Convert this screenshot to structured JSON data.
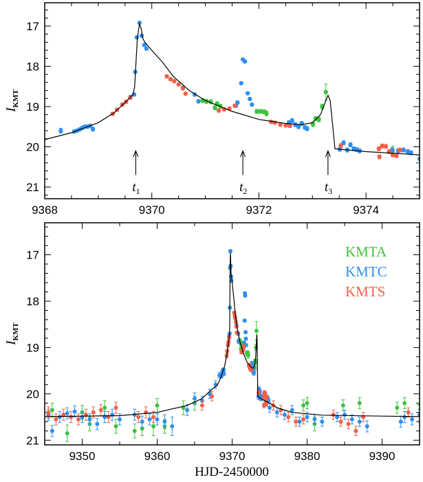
{
  "chart_data": [
    {
      "type": "scatter",
      "panel": "top",
      "xlim": [
        9368,
        9375
      ],
      "ylim": [
        21.29,
        16.42
      ],
      "y_inverted": true,
      "x_ticks": [
        "9368",
        "9370",
        "9372",
        "9374"
      ],
      "y_ticks": [
        "17",
        "18",
        "19",
        "20",
        "21"
      ],
      "ylabel": {
        "main": "I",
        "sub": "KMT"
      },
      "xlabel": "",
      "annotations": [
        {
          "label": "t",
          "sub": "1",
          "x": 9369.7
        },
        {
          "label": "t",
          "sub": "2",
          "x": 9371.7
        },
        {
          "label": "t",
          "sub": "3",
          "x": 9373.29
        }
      ]
    },
    {
      "type": "scatter",
      "panel": "bottom",
      "xlim": [
        9345,
        9395
      ],
      "ylim": [
        21.1,
        16.31
      ],
      "y_inverted": true,
      "x_ticks": [
        "9350",
        "9360",
        "9370",
        "9380",
        "9390"
      ],
      "y_ticks": [
        "17",
        "18",
        "19",
        "20",
        "21"
      ],
      "ylabel": {
        "main": "I",
        "sub": "KMT"
      },
      "xlabel": "HJD-2450000",
      "legend_placement": "top-right"
    }
  ],
  "series": [
    {
      "name": "KMTA",
      "color": "#3cc43c",
      "points": [
        [
          9370.95,
          18.85,
          0.05
        ],
        [
          9371.02,
          18.87,
          0.05
        ],
        [
          9371.1,
          18.88,
          0.05
        ],
        [
          9371.18,
          19.03,
          0.05
        ],
        [
          9371.22,
          18.93,
          0.05
        ],
        [
          9371.28,
          18.99,
          0.05
        ],
        [
          9371.96,
          19.12,
          0.05
        ],
        [
          9372.03,
          19.12,
          0.05
        ],
        [
          9372.1,
          19.13,
          0.05
        ],
        [
          9372.14,
          19.17,
          0.06
        ],
        [
          9373.01,
          19.44,
          0.06
        ],
        [
          9373.06,
          19.3,
          0.05
        ],
        [
          9373.12,
          19.32,
          0.06
        ],
        [
          9373.18,
          19.0,
          0.06
        ],
        [
          9373.25,
          18.64,
          0.2
        ],
        [
          9346,
          20.35,
          0.15
        ],
        [
          9348,
          20.85,
          0.18
        ],
        [
          9350,
          20.4,
          0.15
        ],
        [
          9351,
          20.65,
          0.15
        ],
        [
          9353,
          20.3,
          0.15
        ],
        [
          9354.5,
          20.7,
          0.15
        ],
        [
          9357,
          20.8,
          0.15
        ],
        [
          9358,
          20.75,
          0.15
        ],
        [
          9359.5,
          20.7,
          0.2
        ],
        [
          9360,
          20.25,
          0.15
        ],
        [
          9361,
          20.7,
          0.15
        ],
        [
          9363.5,
          20.3,
          0.15
        ],
        [
          9365,
          20.2,
          0.15
        ],
        [
          9374.5,
          20.1,
          0.12
        ],
        [
          9379.5,
          20.25,
          0.12
        ],
        [
          9380,
          20.2,
          0.12
        ],
        [
          9381,
          20.65,
          0.15
        ],
        [
          9384.8,
          20.25,
          0.12
        ],
        [
          9387,
          20.2,
          0.12
        ],
        [
          9392,
          20.3,
          0.12
        ],
        [
          9393,
          20.2,
          0.12
        ],
        [
          9395,
          20.22,
          0.12
        ]
      ]
    },
    {
      "name": "KMTC",
      "color": "#2e8ff0",
      "points": [
        [
          9368.55,
          19.62,
          0.04
        ],
        [
          9368.6,
          19.6,
          0.04
        ],
        [
          9368.65,
          19.57,
          0.04
        ],
        [
          9368.7,
          19.53,
          0.04
        ],
        [
          9368.75,
          19.5,
          0.04
        ],
        [
          9368.8,
          19.5,
          0.04
        ],
        [
          9368.85,
          19.48,
          0.04
        ],
        [
          9368.9,
          19.56,
          0.05
        ],
        [
          9369.6,
          18.76,
          0.03
        ],
        [
          9369.67,
          18.7,
          0.03
        ],
        [
          9369.69,
          18.14,
          0.03
        ],
        [
          9369.72,
          17.28,
          0.03
        ],
        [
          9369.77,
          16.92,
          0.03
        ],
        [
          9369.81,
          17.24,
          0.03
        ],
        [
          9369.86,
          17.47,
          0.03
        ],
        [
          9369.9,
          17.56,
          0.03
        ],
        [
          9370.58,
          18.53,
          0.04
        ],
        [
          9370.8,
          18.7,
          0.04
        ],
        [
          9370.87,
          18.87,
          0.04
        ],
        [
          9371.57,
          18.98,
          0.04
        ],
        [
          9371.6,
          18.9,
          0.04
        ],
        [
          9371.67,
          18.42,
          0.03
        ],
        [
          9371.7,
          17.83,
          0.03
        ],
        [
          9371.74,
          17.88,
          0.03
        ],
        [
          9371.79,
          18.67,
          0.03
        ],
        [
          9371.83,
          18.81,
          0.03
        ],
        [
          9371.87,
          18.95,
          0.03
        ],
        [
          9372.56,
          19.4,
          0.05
        ],
        [
          9372.62,
          19.35,
          0.05
        ],
        [
          9372.68,
          19.45,
          0.05
        ],
        [
          9372.74,
          19.5,
          0.05
        ],
        [
          9372.8,
          19.42,
          0.05
        ],
        [
          9372.86,
          19.52,
          0.05
        ],
        [
          9372.9,
          19.55,
          0.05
        ],
        [
          9373.51,
          20.06,
          0.05
        ],
        [
          9373.58,
          19.9,
          0.05
        ],
        [
          9373.65,
          20.08,
          0.05
        ],
        [
          9373.71,
          19.95,
          0.05
        ],
        [
          9373.77,
          20.05,
          0.05
        ],
        [
          9373.83,
          20.07,
          0.05
        ],
        [
          9373.88,
          20.1,
          0.05
        ],
        [
          9374.49,
          20.07,
          0.05
        ],
        [
          9374.6,
          20.1,
          0.05
        ],
        [
          9374.7,
          20.08,
          0.05
        ],
        [
          9374.78,
          20.12,
          0.05
        ],
        [
          9374.84,
          20.15,
          0.05
        ],
        [
          9345.5,
          20.45,
          0.12
        ],
        [
          9346,
          20.8,
          0.12
        ],
        [
          9347,
          20.5,
          0.12
        ],
        [
          9348,
          20.42,
          0.12
        ],
        [
          9349,
          20.38,
          0.12
        ],
        [
          9350,
          20.5,
          0.12
        ],
        [
          9351,
          20.55,
          0.12
        ],
        [
          9352,
          20.65,
          0.12
        ],
        [
          9353,
          20.5,
          0.12
        ],
        [
          9354,
          20.45,
          0.12
        ],
        [
          9355,
          20.55,
          0.12
        ],
        [
          9357,
          20.45,
          0.12
        ],
        [
          9358,
          20.6,
          0.12
        ],
        [
          9359,
          20.55,
          0.12
        ],
        [
          9360,
          20.55,
          0.12
        ],
        [
          9361,
          20.6,
          0.15
        ],
        [
          9362,
          20.7,
          0.2
        ],
        [
          9364,
          20.35,
          0.12
        ],
        [
          9365,
          20.1,
          0.12
        ],
        [
          9366,
          20.15,
          0.1
        ],
        [
          9367,
          20.0,
          0.1
        ],
        [
          9367.8,
          19.8,
          0.08
        ],
        [
          9368.3,
          19.6,
          0.06
        ],
        [
          9375,
          20.3,
          0.1
        ],
        [
          9376,
          20.4,
          0.1
        ],
        [
          9377,
          20.45,
          0.1
        ],
        [
          9378,
          20.35,
          0.1
        ],
        [
          9379,
          20.6,
          0.1
        ],
        [
          9380,
          20.5,
          0.1
        ],
        [
          9381,
          20.55,
          0.1
        ],
        [
          9382,
          20.6,
          0.1
        ],
        [
          9384,
          20.5,
          0.1
        ],
        [
          9385,
          20.45,
          0.1
        ],
        [
          9386,
          20.55,
          0.1
        ],
        [
          9387,
          20.6,
          0.1
        ],
        [
          9388,
          20.7,
          0.12
        ],
        [
          9392.5,
          20.6,
          0.12
        ],
        [
          9393,
          20.5,
          0.12
        ],
        [
          9394,
          20.55,
          0.12
        ],
        [
          9395,
          20.45,
          0.12
        ]
      ]
    },
    {
      "name": "KMTS",
      "color": "#f26048",
      "points": [
        [
          9369.27,
          19.18,
          0.04
        ],
        [
          9369.35,
          19.08,
          0.04
        ],
        [
          9369.45,
          18.95,
          0.04
        ],
        [
          9369.52,
          18.88,
          0.04
        ],
        [
          9369.6,
          18.78,
          0.04
        ],
        [
          9370.28,
          18.25,
          0.03
        ],
        [
          9370.35,
          18.32,
          0.03
        ],
        [
          9370.42,
          18.37,
          0.03
        ],
        [
          9370.5,
          18.45,
          0.03
        ],
        [
          9370.58,
          18.55,
          0.03
        ],
        [
          9370.63,
          18.68,
          0.03
        ],
        [
          9371.25,
          19.1,
          0.04
        ],
        [
          9371.35,
          19.07,
          0.04
        ],
        [
          9371.45,
          19.05,
          0.04
        ],
        [
          9371.55,
          18.98,
          0.04
        ],
        [
          9372.23,
          19.38,
          0.04
        ],
        [
          9372.3,
          19.4,
          0.04
        ],
        [
          9372.4,
          19.45,
          0.04
        ],
        [
          9372.5,
          19.47,
          0.04
        ],
        [
          9372.58,
          19.48,
          0.04
        ],
        [
          9373.53,
          19.97,
          0.05
        ],
        [
          9374.24,
          20.05,
          0.05
        ],
        [
          9374.25,
          20.25,
          0.05
        ],
        [
          9374.3,
          19.98,
          0.05
        ],
        [
          9374.37,
          19.99,
          0.05
        ],
        [
          9374.43,
          20.12,
          0.05
        ],
        [
          9374.5,
          20.2,
          0.05
        ],
        [
          9374.57,
          20.22,
          0.05
        ],
        [
          9374.63,
          20.08,
          0.05
        ],
        [
          9345.5,
          20.4,
          0.12
        ],
        [
          9346.5,
          20.55,
          0.12
        ],
        [
          9347.5,
          20.45,
          0.12
        ],
        [
          9348.5,
          20.5,
          0.12
        ],
        [
          9349.5,
          20.55,
          0.12
        ],
        [
          9350.5,
          20.45,
          0.12
        ],
        [
          9351.5,
          20.4,
          0.12
        ],
        [
          9352.5,
          20.35,
          0.12
        ],
        [
          9353.5,
          20.5,
          0.12
        ],
        [
          9354.5,
          20.3,
          0.12
        ],
        [
          9357.5,
          20.5,
          0.12
        ],
        [
          9358.5,
          20.4,
          0.12
        ],
        [
          9359.5,
          20.5,
          0.12
        ],
        [
          9366,
          20.25,
          0.1
        ],
        [
          9367.3,
          20.05,
          0.1
        ],
        [
          9375.5,
          20.25,
          0.1
        ],
        [
          9376.5,
          20.35,
          0.1
        ],
        [
          9377.5,
          20.5,
          0.1
        ],
        [
          9378.5,
          20.6,
          0.1
        ],
        [
          9379.5,
          20.55,
          0.1
        ],
        [
          9383.5,
          20.45,
          0.1
        ],
        [
          9384.5,
          20.6,
          0.1
        ],
        [
          9385.5,
          20.65,
          0.1
        ],
        [
          9386.5,
          20.8,
          0.1
        ],
        [
          9387.5,
          20.5,
          0.1
        ],
        [
          9393.5,
          20.4,
          0.1
        ]
      ]
    }
  ],
  "model": [
    [
      9345,
      20.49
    ],
    [
      9355,
      20.47
    ],
    [
      9360,
      20.4
    ],
    [
      9364,
      20.25
    ],
    [
      9366,
      20.1
    ],
    [
      9367.5,
      19.87
    ],
    [
      9368,
      19.82
    ],
    [
      9368.5,
      19.65
    ],
    [
      9369,
      19.4
    ],
    [
      9369.3,
      19.15
    ],
    [
      9369.5,
      18.9
    ],
    [
      9369.65,
      18.7
    ],
    [
      9369.68,
      18.5
    ],
    [
      9369.7,
      18.0
    ],
    [
      9369.73,
      17.3
    ],
    [
      9369.77,
      16.95
    ],
    [
      9369.8,
      17.05
    ],
    [
      9369.83,
      17.3
    ],
    [
      9369.87,
      17.4
    ],
    [
      9370.0,
      17.6
    ],
    [
      9370.2,
      17.9
    ],
    [
      9370.4,
      18.25
    ],
    [
      9370.7,
      18.6
    ],
    [
      9371.0,
      18.85
    ],
    [
      9371.5,
      19.12
    ],
    [
      9372,
      19.32
    ],
    [
      9372.5,
      19.42
    ],
    [
      9372.8,
      19.45
    ],
    [
      9373.0,
      19.4
    ],
    [
      9373.15,
      19.2
    ],
    [
      9373.25,
      18.85
    ],
    [
      9373.29,
      18.72
    ],
    [
      9373.33,
      18.85
    ],
    [
      9373.38,
      19.5
    ],
    [
      9373.42,
      20.05
    ],
    [
      9374,
      20.12
    ],
    [
      9375,
      20.2
    ],
    [
      9376,
      20.3
    ],
    [
      9378,
      20.4
    ],
    [
      9382,
      20.46
    ],
    [
      9390,
      20.48
    ],
    [
      9395,
      20.49
    ]
  ]
}
